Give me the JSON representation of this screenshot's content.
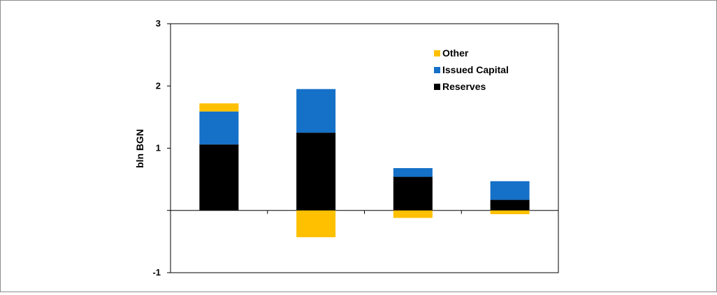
{
  "chart_data": {
    "type": "bar",
    "stacked": true,
    "title": "",
    "xlabel": "",
    "ylabel": "bln BGN",
    "categories": [
      "",
      "",
      "",
      ""
    ],
    "ylim": [
      -1,
      3
    ],
    "yticks": [
      -1,
      1,
      2,
      3
    ],
    "grid": false,
    "legend_position": "top-right",
    "series": [
      {
        "name": "Reserves",
        "color": "#000000",
        "values": [
          1.06,
          1.25,
          0.54,
          0.17
        ]
      },
      {
        "name": "Issued Capital",
        "color": "#1570C8",
        "values": [
          0.53,
          0.7,
          0.14,
          0.3
        ]
      },
      {
        "name": "Other",
        "color": "#FFC000",
        "values": [
          0.13,
          -0.43,
          -0.12,
          -0.06
        ]
      }
    ],
    "legend_order": [
      "Other",
      "Issued Capital",
      "Reserves"
    ]
  }
}
